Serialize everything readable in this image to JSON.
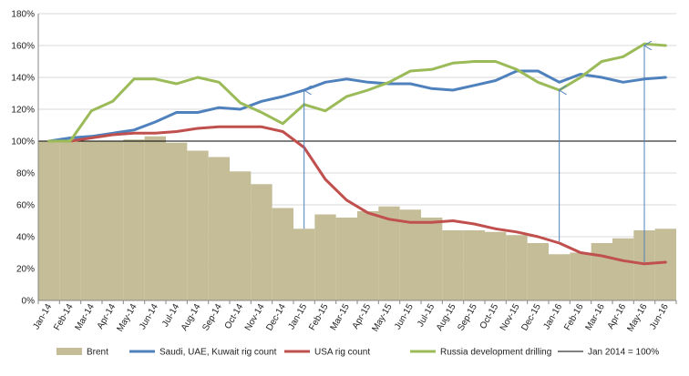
{
  "chart_data": {
    "type": "bar",
    "categories": [
      "Jan-14",
      "Feb-14",
      "Mar-14",
      "Apr-14",
      "May-14",
      "Jun-14",
      "Jul-14",
      "Aug-14",
      "Sep-14",
      "Oct-14",
      "Nov-14",
      "Dec-14",
      "Jan-15",
      "Feb-15",
      "Mar-15",
      "Apr-15",
      "May-15",
      "Jun-15",
      "Jul-15",
      "Aug-15",
      "Sep-15",
      "Oct-15",
      "Nov-15",
      "Dec-15",
      "Jan-16",
      "Feb-16",
      "Mar-16",
      "Apr-16",
      "May-16",
      "Jun-16"
    ],
    "ylim": [
      0,
      180
    ],
    "yticks": [
      0,
      20,
      40,
      60,
      80,
      100,
      120,
      140,
      160,
      180
    ],
    "ytick_labels": [
      "0%",
      "20%",
      "40%",
      "60%",
      "80%",
      "100%",
      "120%",
      "140%",
      "160%",
      "180%"
    ],
    "grid": "horizontal",
    "legend_position": "bottom",
    "series": [
      {
        "name": "Brent",
        "kind": "bar",
        "color": "#c4bd97",
        "values": [
          100,
          100,
          100,
          100,
          101,
          103,
          99,
          94,
          90,
          81,
          73,
          58,
          45,
          54,
          52,
          56,
          59,
          57,
          52,
          44,
          44,
          43,
          41,
          36,
          29,
          30,
          36,
          39,
          44,
          45
        ]
      },
      {
        "name": "Saudi, UAE, Kuwait rig count",
        "kind": "line",
        "color": "#4f81bd",
        "values": [
          100,
          102,
          103,
          105,
          107,
          112,
          118,
          118,
          121,
          120,
          125,
          128,
          132,
          137,
          139,
          137,
          136,
          136,
          133,
          132,
          135,
          138,
          144,
          144,
          137,
          142,
          140,
          137,
          139,
          140
        ]
      },
      {
        "name": "USA rig count",
        "kind": "line",
        "color": "#c0504d",
        "values": [
          100,
          100,
          102,
          104,
          105,
          105,
          106,
          108,
          109,
          109,
          109,
          106,
          96,
          76,
          63,
          55,
          51,
          49,
          49,
          50,
          48,
          45,
          43,
          40,
          36,
          30,
          28,
          25,
          23,
          24
        ]
      },
      {
        "name": "Russia development drilling",
        "kind": "line",
        "color": "#9bbb59",
        "values": [
          100,
          100,
          119,
          125,
          139,
          139,
          136,
          140,
          137,
          124,
          118,
          111,
          123,
          119,
          128,
          132,
          137,
          144,
          145,
          149,
          150,
          150,
          145,
          137,
          132,
          140,
          150,
          153,
          161,
          160
        ]
      },
      {
        "name": "Jan 2014 = 100%",
        "kind": "reference",
        "color": "#000000",
        "value": 100
      }
    ],
    "annotations": [
      {
        "type": "arrow",
        "x": "Jan-15",
        "from": 45,
        "to": 132,
        "color": "#4f81bd"
      },
      {
        "type": "arrow",
        "x": "Jan-16",
        "from": 37,
        "to": 132,
        "color": "#4f81bd"
      },
      {
        "type": "arrow",
        "x": "May-16",
        "from": 24,
        "to": 160,
        "color": "#4f81bd"
      }
    ]
  }
}
